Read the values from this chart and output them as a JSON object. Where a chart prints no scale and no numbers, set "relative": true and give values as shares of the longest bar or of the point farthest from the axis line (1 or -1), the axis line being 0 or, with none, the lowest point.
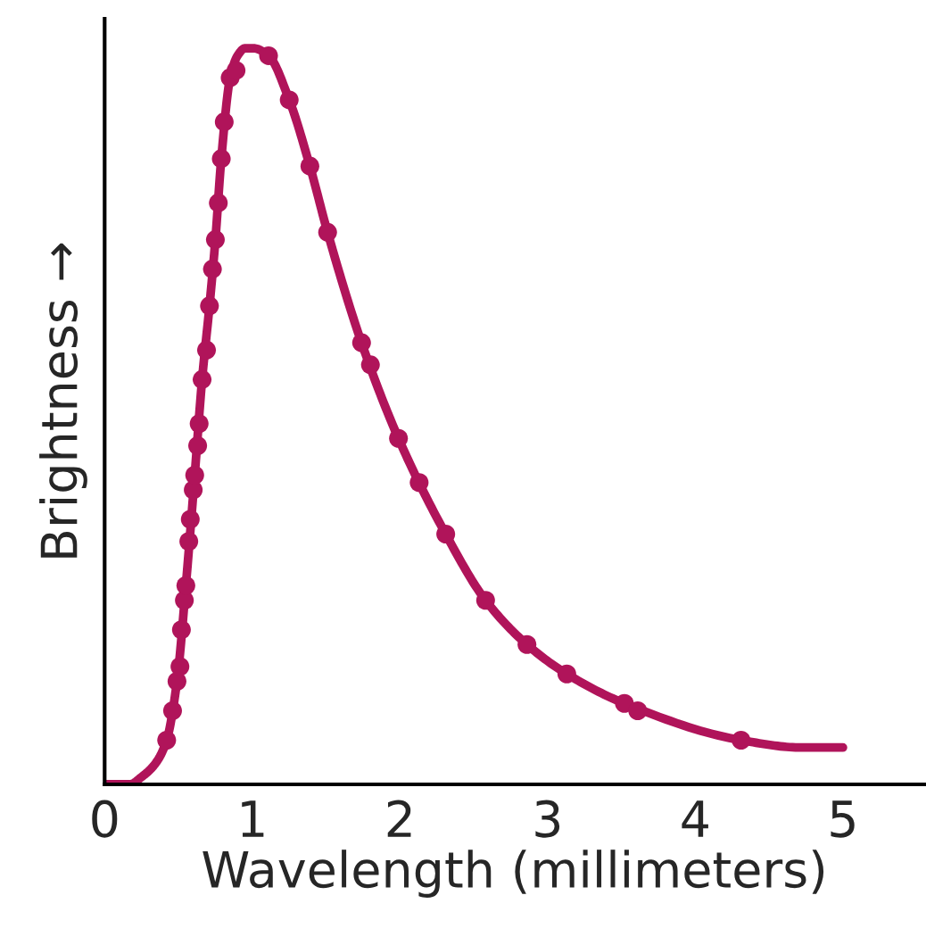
{
  "chart_data": {
    "type": "line",
    "xlabel": "Wavelength (millimeters)",
    "ylabel": "Brightness →",
    "relative": true,
    "xlim": [
      0,
      5.55
    ],
    "xticks": [
      0,
      1,
      2,
      3,
      4,
      5
    ],
    "grid": false,
    "legend": false,
    "series": [
      {
        "type": "line",
        "color": "#b0145a",
        "marker": "none",
        "line_style": "solid",
        "x": [
          0,
          0.17,
          0.25,
          0.35,
          0.42,
          0.49,
          0.55,
          0.61,
          0.66,
          0.71,
          0.75,
          0.79,
          0.85,
          0.9,
          0.95,
          1.01,
          1.11,
          1.25,
          1.39,
          1.51,
          1.74,
          1.99,
          2.31,
          2.58,
          2.86,
          3.13,
          3.52,
          4.31,
          4.72,
          5.0
        ],
        "values": [
          0,
          0,
          0.01,
          0.03,
          0.06,
          0.14,
          0.27,
          0.42,
          0.55,
          0.65,
          0.74,
          0.85,
          0.96,
          0.99,
          1.0,
          1.0,
          0.99,
          0.93,
          0.84,
          0.75,
          0.6,
          0.47,
          0.34,
          0.25,
          0.19,
          0.15,
          0.11,
          0.06,
          0.05,
          0.05
        ]
      },
      {
        "type": "scatter",
        "color": "#b0145a",
        "marker": "circle",
        "x": [
          0.42,
          0.46,
          0.49,
          0.51,
          0.52,
          0.54,
          0.55,
          0.57,
          0.58,
          0.6,
          0.61,
          0.63,
          0.64,
          0.66,
          0.69,
          0.71,
          0.73,
          0.75,
          0.77,
          0.79,
          0.81,
          0.85,
          0.89,
          1.11,
          1.25,
          1.39,
          1.51,
          1.74,
          1.8,
          1.99,
          2.13,
          2.31,
          2.58,
          2.86,
          3.13,
          3.52,
          3.61,
          4.31
        ],
        "values": [
          0.06,
          0.1,
          0.14,
          0.16,
          0.21,
          0.25,
          0.27,
          0.33,
          0.36,
          0.4,
          0.42,
          0.46,
          0.49,
          0.55,
          0.59,
          0.65,
          0.7,
          0.74,
          0.79,
          0.85,
          0.9,
          0.96,
          0.97,
          0.99,
          0.93,
          0.84,
          0.75,
          0.6,
          0.57,
          0.47,
          0.41,
          0.34,
          0.25,
          0.19,
          0.15,
          0.11,
          0.1,
          0.06
        ]
      }
    ]
  }
}
